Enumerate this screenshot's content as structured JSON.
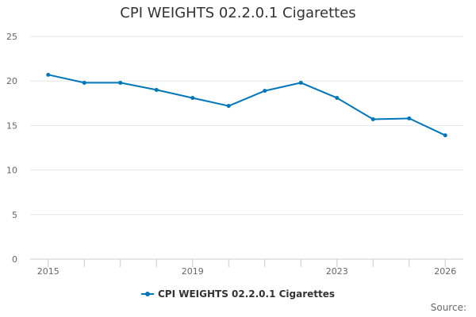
{
  "chart_data": {
    "type": "line",
    "title": "CPI WEIGHTS 02.2.0.1 Cigarettes",
    "xlabel": "",
    "ylabel": "",
    "x": [
      2015,
      2016,
      2017,
      2018,
      2019,
      2020,
      2021,
      2022,
      2023,
      2024,
      2025,
      2026
    ],
    "series": [
      {
        "name": "CPI WEIGHTS 02.2.0.1 Cigarettes",
        "values": [
          20.7,
          19.8,
          19.8,
          19.0,
          18.1,
          17.2,
          18.9,
          19.8,
          18.1,
          15.7,
          15.8,
          13.9
        ]
      }
    ],
    "ylim": [
      0,
      25
    ],
    "yticks": [
      0,
      5,
      10,
      15,
      20,
      25
    ],
    "xtick_labels": [
      2015,
      2019,
      2023,
      2026
    ],
    "grid": true,
    "legend_position": "bottom",
    "color": "#0077bb",
    "source_label": "Source:"
  }
}
